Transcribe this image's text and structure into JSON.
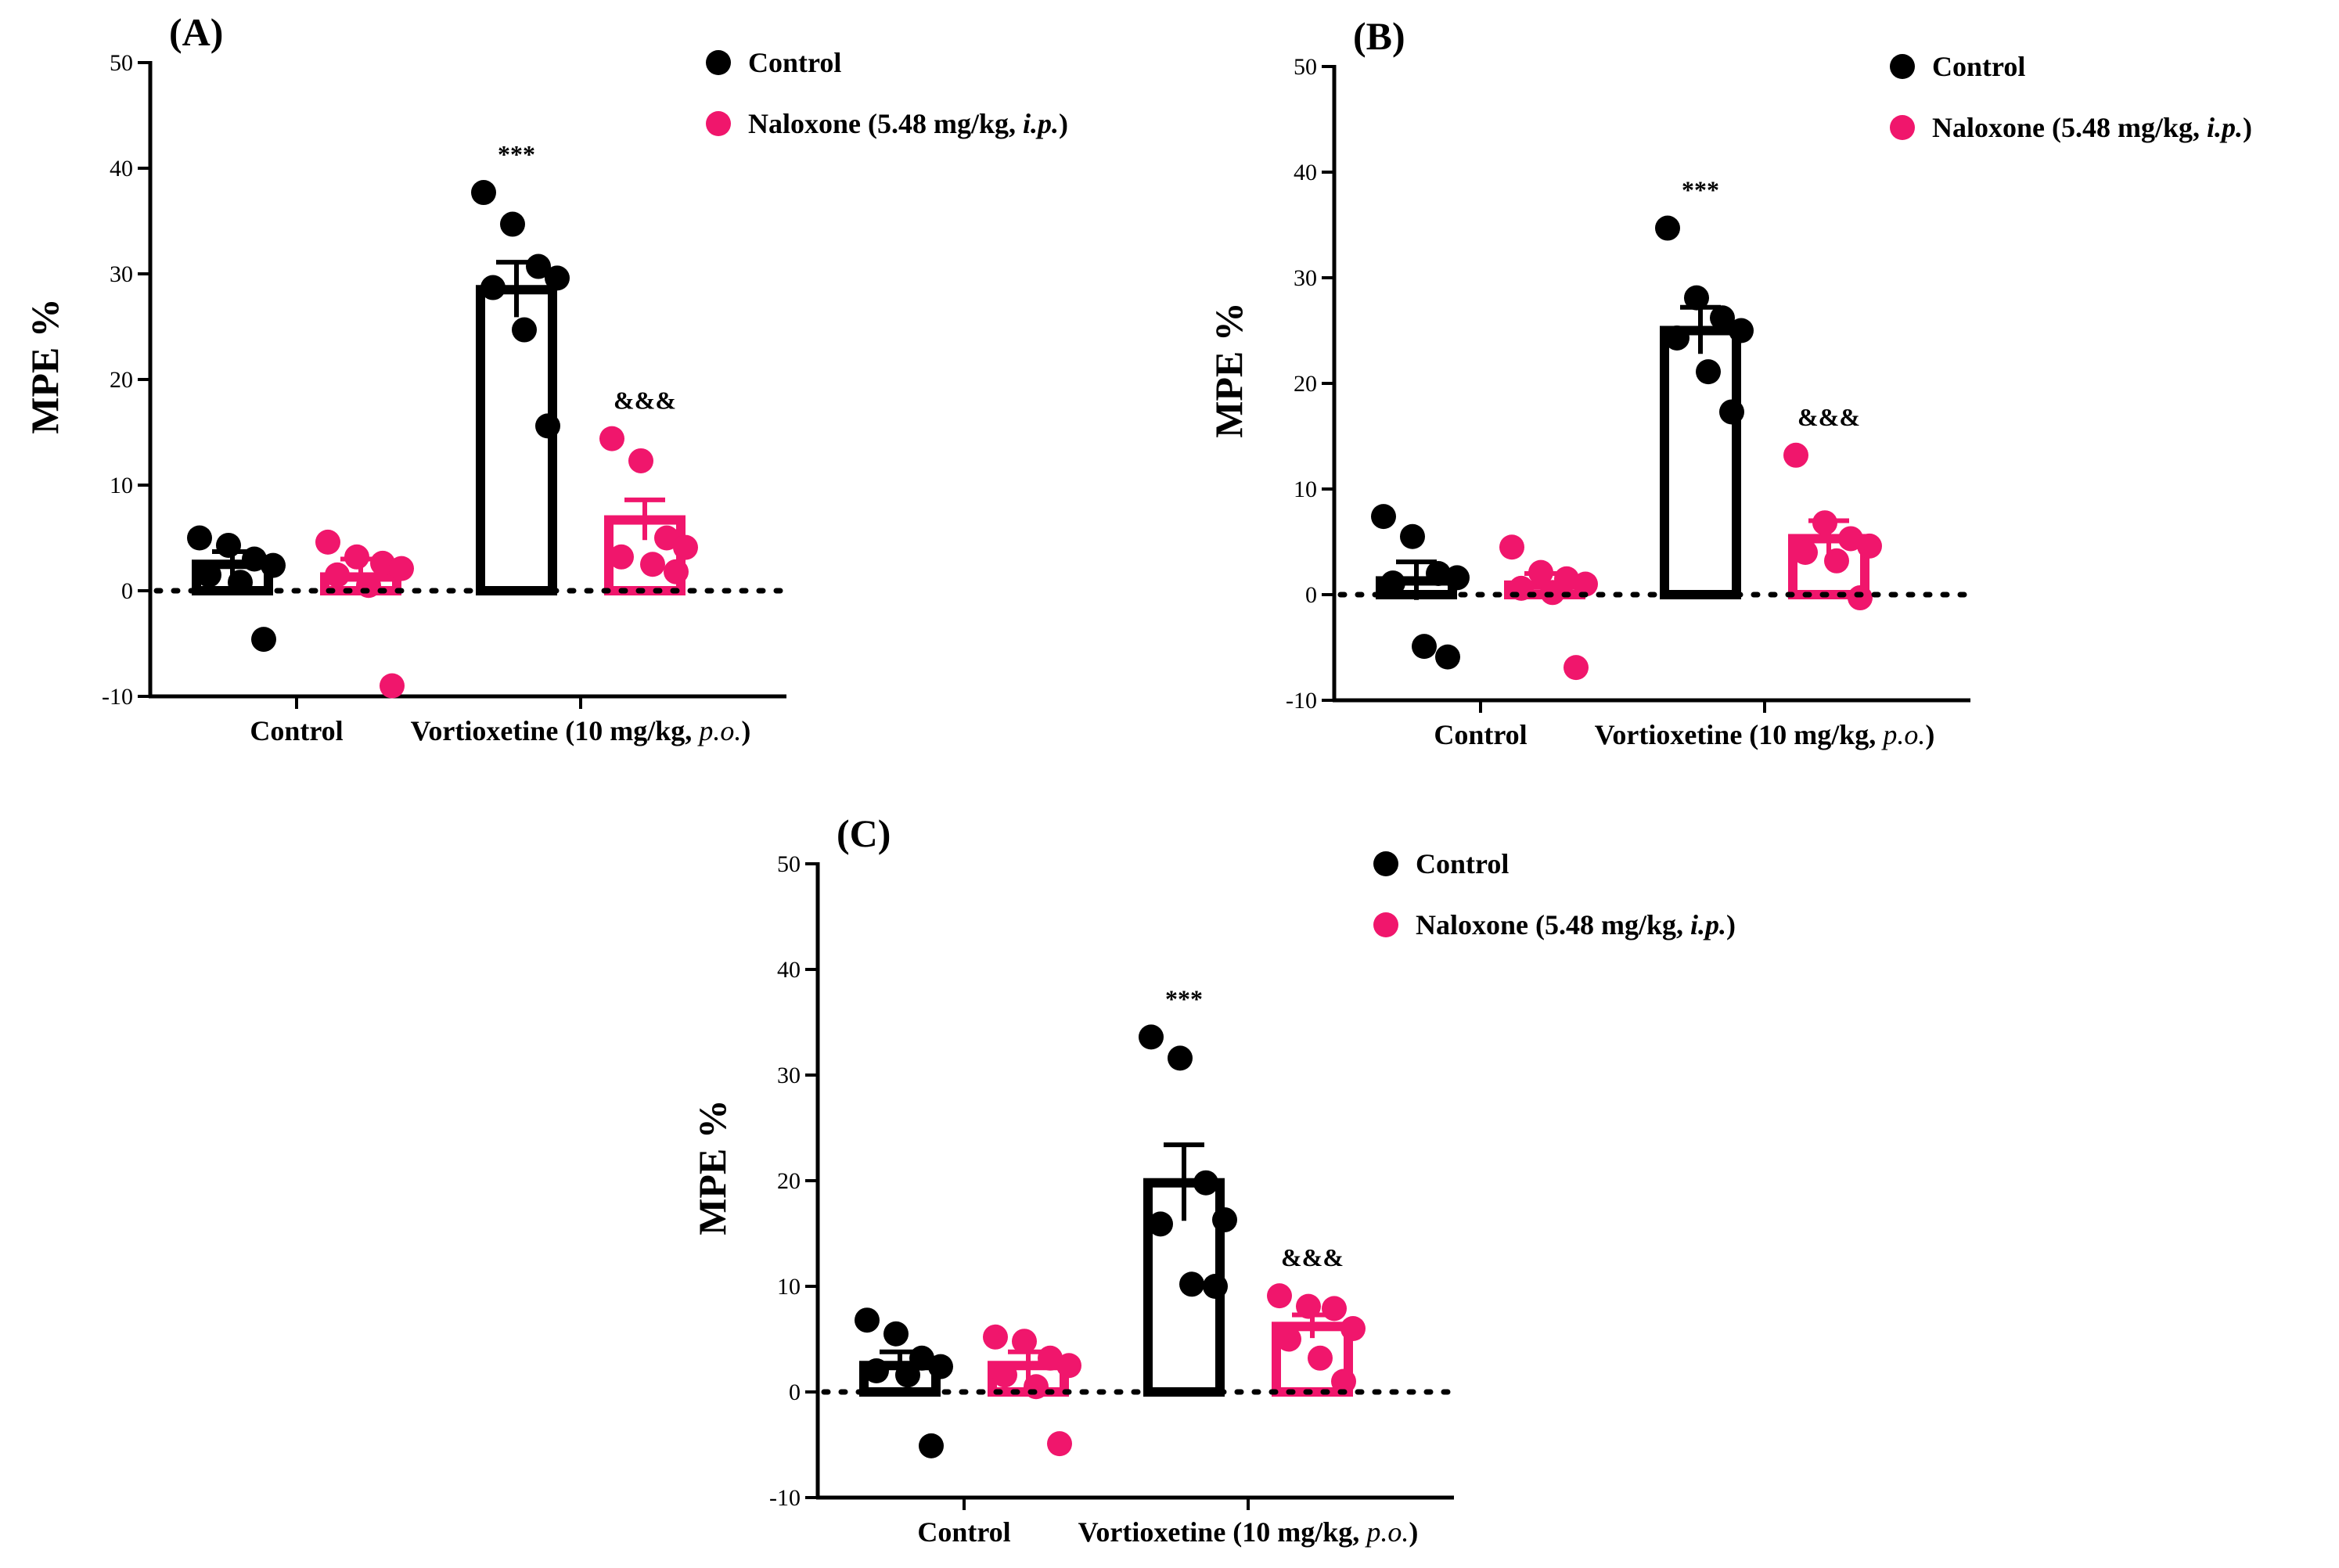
{
  "chart_data": [
    {
      "type": "bar",
      "panel": "(A)",
      "ylabel": "MPE %",
      "ylim": [
        -10,
        50
      ],
      "yticks": [
        -10,
        0,
        10,
        20,
        30,
        40,
        50
      ],
      "categories": [
        "Control",
        "Vortioxetine (10 mg/kg, p.o.)"
      ],
      "category_parts": [
        {
          "main": "Control",
          "italic": "",
          "tail": ""
        },
        {
          "main": "Vortioxetine (10 mg/kg, ",
          "italic": "p.o.",
          "tail": ")"
        }
      ],
      "legend": [
        {
          "main": "Control",
          "italic": "",
          "tail": ""
        },
        {
          "main": "Naloxone (5.48 mg/kg, ",
          "italic": "i.p.",
          "tail": ")"
        }
      ],
      "series": [
        {
          "name": "Control",
          "color": "#000000",
          "values": [
            2.5,
            28.5
          ],
          "sem": [
            1.2,
            2.6
          ],
          "points": [
            [
              5.0,
              4.3,
              3.0,
              2.4,
              1.5,
              0.8,
              -4.6
            ],
            [
              37.7,
              34.7,
              30.7,
              29.6,
              28.7,
              24.7,
              15.6
            ]
          ],
          "sig": [
            "",
            "***"
          ]
        },
        {
          "name": "Naloxone (5.48 mg/kg, i.p.)",
          "color": "#F0166C",
          "values": [
            1.3,
            6.7
          ],
          "sem": [
            1.7,
            1.9
          ],
          "points": [
            [
              4.6,
              3.2,
              2.6,
              2.1,
              1.5,
              0.5,
              -9.0
            ],
            [
              14.4,
              12.3,
              5.0,
              4.1,
              3.2,
              2.5,
              1.8
            ]
          ],
          "sig": [
            "",
            "&&&"
          ]
        }
      ]
    },
    {
      "type": "bar",
      "panel": "(B)",
      "ylabel": "MPE %",
      "ylim": [
        -10,
        50
      ],
      "yticks": [
        -10,
        0,
        10,
        20,
        30,
        40,
        50
      ],
      "categories": [
        "Control",
        "Vortioxetine (10 mg/kg, p.o.)"
      ],
      "category_parts": [
        {
          "main": "Control",
          "italic": "",
          "tail": ""
        },
        {
          "main": "Vortioxetine (10 mg/kg, ",
          "italic": "p.o.",
          "tail": ")"
        }
      ],
      "legend": [
        {
          "main": "Control",
          "italic": "",
          "tail": ""
        },
        {
          "main": "Naloxone (5.48 mg/kg, ",
          "italic": "i.p.",
          "tail": ")"
        }
      ],
      "series": [
        {
          "name": "Control",
          "color": "#000000",
          "values": [
            1.3,
            25.0
          ],
          "sem": [
            1.8,
            2.2
          ],
          "points": [
            [
              7.4,
              5.5,
              2.0,
              1.6,
              1.1,
              -4.9,
              -5.9
            ],
            [
              34.7,
              28.1,
              26.2,
              25.0,
              24.3,
              21.1,
              17.3
            ]
          ],
          "sig": [
            "",
            "***"
          ]
        },
        {
          "name": "Naloxone (5.48 mg/kg, i.p.)",
          "color": "#F0166C",
          "values": [
            0.9,
            5.3
          ],
          "sem": [
            1.1,
            1.7
          ],
          "points": [
            [
              4.5,
              2.1,
              1.5,
              1.0,
              0.6,
              0.2,
              -6.9
            ],
            [
              13.2,
              6.8,
              5.3,
              4.6,
              4.0,
              3.2,
              -0.3
            ]
          ],
          "sig": [
            "",
            "&&&"
          ]
        }
      ]
    },
    {
      "type": "bar",
      "panel": "(C)",
      "ylabel": "MPE %",
      "ylim": [
        -10,
        50
      ],
      "yticks": [
        -10,
        0,
        10,
        20,
        30,
        40,
        50
      ],
      "categories": [
        "Control",
        "Vortioxetine (10 mg/kg, p.o.)"
      ],
      "category_parts": [
        {
          "main": "Control",
          "italic": "",
          "tail": ""
        },
        {
          "main": "Vortioxetine (10 mg/kg, ",
          "italic": "p.o.",
          "tail": ")"
        }
      ],
      "legend": [
        {
          "main": "Control",
          "italic": "",
          "tail": ""
        },
        {
          "main": "Naloxone (5.48 mg/kg, ",
          "italic": "i.p.",
          "tail": ")"
        }
      ],
      "series": [
        {
          "name": "Control",
          "color": "#000000",
          "values": [
            2.5,
            19.8
          ],
          "sem": [
            1.3,
            3.6
          ],
          "points": [
            [
              6.8,
              5.5,
              3.2,
              2.4,
              2.0,
              1.6,
              -5.1
            ],
            [
              33.6,
              31.6,
              19.8,
              16.3,
              15.9,
              10.2,
              10.0
            ]
          ],
          "sig": [
            "",
            "***"
          ]
        },
        {
          "name": "Naloxone (5.48 mg/kg, i.p.)",
          "color": "#F0166C",
          "values": [
            2.5,
            6.2
          ],
          "sem": [
            1.3,
            1.1
          ],
          "points": [
            [
              5.2,
              4.8,
              3.2,
              2.5,
              1.6,
              0.5,
              -4.9
            ],
            [
              9.1,
              8.1,
              7.9,
              6.0,
              5.0,
              3.2,
              1.0
            ]
          ],
          "sig": [
            "",
            "&&&"
          ]
        }
      ]
    }
  ]
}
